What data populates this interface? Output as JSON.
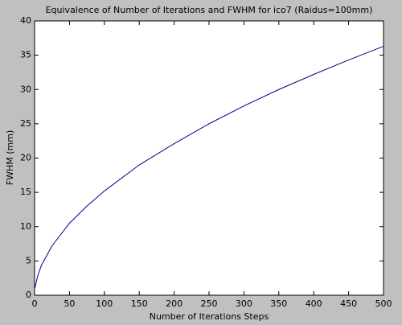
{
  "chart_data": {
    "type": "line",
    "title": "Equivalence of Number of Iterations and FWHM for ico7 (Raidus=100mm)",
    "x_label": "Number of Iterations Steps",
    "y_label": "FWHM (mm)",
    "x": [
      0,
      1,
      5,
      10,
      25,
      50,
      75,
      100,
      150,
      200,
      250,
      300,
      350,
      400,
      450,
      500
    ],
    "series": [
      {
        "name": "FWHM",
        "color": "#00008b",
        "values": [
          1.0,
          1.3,
          3.0,
          4.4,
          7.2,
          10.5,
          13.0,
          15.2,
          19.0,
          22.1,
          25.0,
          27.6,
          30.0,
          32.2,
          34.3,
          36.3
        ]
      }
    ],
    "xlim": [
      0,
      500
    ],
    "xticks": [
      0,
      50,
      100,
      150,
      200,
      250,
      300,
      350,
      400,
      450,
      500
    ],
    "ylim": [
      0,
      40
    ],
    "yticks": [
      0,
      5,
      10,
      15,
      20,
      25,
      30,
      35,
      40
    ],
    "grid": false
  }
}
